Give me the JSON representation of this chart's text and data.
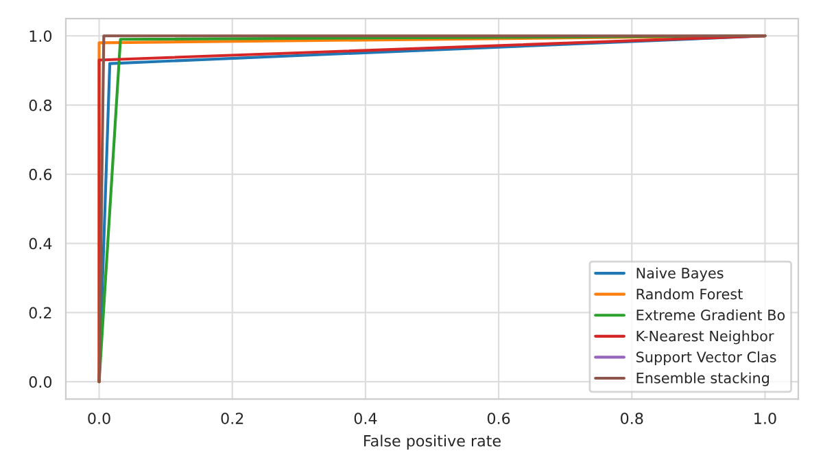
{
  "chart_data": {
    "type": "line",
    "xlabel": "False positive rate",
    "series": [
      {
        "name": "Naive Bayes",
        "color": "#1f77b4",
        "x": [
          0,
          0.016,
          1
        ],
        "values": [
          0,
          0.92,
          1
        ]
      },
      {
        "name": "Random Forest",
        "color": "#ff7f0e",
        "x": [
          0,
          0,
          1
        ],
        "values": [
          0,
          0.98,
          1
        ]
      },
      {
        "name": "Extreme Gradient Bo",
        "color": "#2ca02c",
        "x": [
          0,
          0.032,
          1
        ],
        "values": [
          0,
          0.99,
          1
        ]
      },
      {
        "name": "K-Nearest Neighbor",
        "color": "#d62728",
        "x": [
          0,
          0,
          1
        ],
        "values": [
          0,
          0.93,
          1
        ]
      },
      {
        "name": "Support Vector Clas",
        "color": "#9467bd"
      },
      {
        "name": "Ensemble stacking",
        "color": "#8c564b",
        "x": [
          0,
          0.007,
          1
        ],
        "values": [
          0,
          1,
          1
        ]
      }
    ],
    "xlim": [
      -0.05,
      1.05
    ],
    "ylim": [
      -0.05,
      1.05
    ],
    "xticks": [
      {
        "value": 0,
        "label": "0.0"
      },
      0.2,
      0.4,
      0.6,
      0.8,
      {
        "value": 1,
        "label": "1.0"
      }
    ],
    "yticks": [
      {
        "value": 0,
        "label": "0.0"
      },
      0.2,
      0.4,
      0.6,
      0.8,
      {
        "value": 1,
        "label": "1.0"
      }
    ],
    "grid": true,
    "legend": "bottom right",
    "marker": "none",
    "line_style": "solid"
  }
}
